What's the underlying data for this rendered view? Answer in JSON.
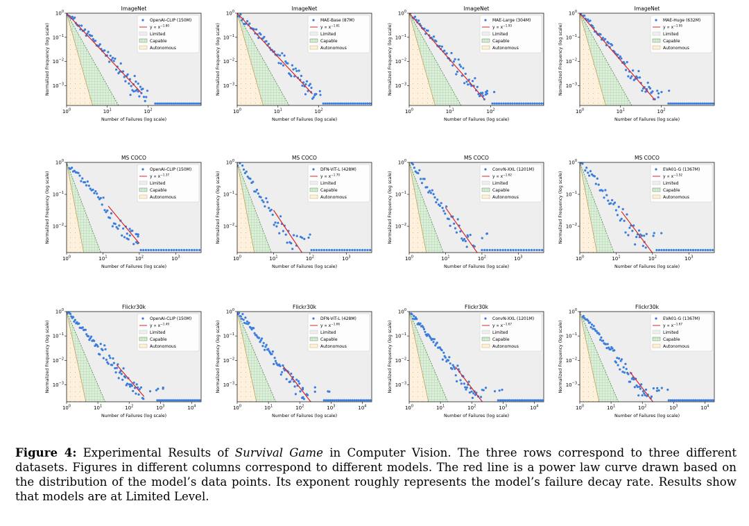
{
  "figure": {
    "caption": {
      "label": "Figure 4:",
      "pre": " Experimental Results of ",
      "em": "Survival Game",
      "post": " in Computer Vision. The three rows correspond to three different datasets. Figures in different columns correspond to different models. The red line is a power law curve drawn based on the distribution of the model’s data points. Its exponent roughly represents the model’s failure decay rate. Results show that models are at Limited Level."
    }
  },
  "legend_labels": {
    "fit": "y ∝ x",
    "limited": "Limited",
    "capable": "Capable",
    "autonomous": "Autonomous"
  },
  "colors": {
    "points": "#3b7ddd",
    "fit": "#d62728",
    "limited": "#eeeeee",
    "capable": "#dcefd9",
    "capable_edge": "#3a7a3a",
    "autonomous": "#fdf0dc",
    "autonomous_edge": "#b89a4a",
    "axes": "#000000"
  },
  "chart_data": [
    {
      "type": "scatter",
      "title": "ImageNet",
      "xlabel": "Number of Failures (log scale)",
      "ylabel": "Normalized Frequency (log scale)",
      "xscale": "log",
      "yscale": "log",
      "xlim": [
        1,
        2000
      ],
      "ylim": [
        0.00015,
        1
      ],
      "xticks": [
        1,
        10,
        100
      ],
      "yticks": [
        0.001,
        0.01,
        0.1,
        1
      ],
      "legend": "top-right",
      "series": [
        {
          "name": "OpenAI-CLIP (150M)"
        }
      ],
      "fit": {
        "exponent": "-1.80",
        "x_range": [
          1,
          70
        ]
      }
    },
    {
      "type": "scatter",
      "title": "ImageNet",
      "xlabel": "Number of Failures (log scale)",
      "ylabel": "Normalized Frequency (log scale)",
      "xscale": "log",
      "yscale": "log",
      "xlim": [
        1,
        2000
      ],
      "ylim": [
        0.00015,
        1
      ],
      "xticks": [
        1,
        10,
        100
      ],
      "yticks": [
        0.001,
        0.01,
        0.1,
        1
      ],
      "legend": "top-right",
      "series": [
        {
          "name": "MAE-Base (87M)"
        }
      ],
      "fit": {
        "exponent": "-1.81",
        "x_range": [
          1,
          70
        ]
      }
    },
    {
      "type": "scatter",
      "title": "ImageNet",
      "xlabel": "Number of Failures (log scale)",
      "ylabel": "Normalized Frequency (log scale)",
      "xscale": "log",
      "yscale": "log",
      "xlim": [
        1,
        2000
      ],
      "ylim": [
        0.00015,
        1
      ],
      "xticks": [
        1,
        10,
        100
      ],
      "yticks": [
        0.001,
        0.01,
        0.1,
        1
      ],
      "legend": "top-right",
      "series": [
        {
          "name": "MAE-Large (304M)"
        }
      ],
      "fit": {
        "exponent": "-1.93",
        "x_range": [
          1,
          70
        ]
      }
    },
    {
      "type": "scatter",
      "title": "ImageNet",
      "xlabel": "Number of Failures (log scale)",
      "ylabel": "Normalized Frequency (log scale)",
      "xscale": "log",
      "yscale": "log",
      "xlim": [
        1,
        2000
      ],
      "ylim": [
        0.00015,
        1
      ],
      "xticks": [
        1,
        10,
        100
      ],
      "yticks": [
        0.001,
        0.01,
        0.1,
        1
      ],
      "legend": "top-right",
      "series": [
        {
          "name": "MAE-Huge (632M)"
        }
      ],
      "fit": {
        "exponent": "-1.95",
        "x_range": [
          1,
          70
        ]
      }
    },
    {
      "type": "scatter",
      "title": "MS COCO",
      "xlabel": "Number of Failures (log scale)",
      "ylabel": "Normalized Frequency (log scale)",
      "xscale": "log",
      "yscale": "log",
      "xlim": [
        1,
        5000
      ],
      "ylim": [
        0.0015,
        1
      ],
      "xticks": [
        1,
        10,
        100,
        1000
      ],
      "yticks": [
        0.01,
        0.1,
        1
      ],
      "legend": "top-right",
      "series": [
        {
          "name": "OpenAI-CLIP (150M)"
        }
      ],
      "fit": {
        "exponent": "-1.37",
        "x_range": [
          14,
          100
        ]
      }
    },
    {
      "type": "scatter",
      "title": "MS COCO",
      "xlabel": "Number of Failures (log scale)",
      "ylabel": "Normalized Frequency (log scale)",
      "xscale": "log",
      "yscale": "log",
      "xlim": [
        1,
        5000
      ],
      "ylim": [
        0.0015,
        1
      ],
      "xticks": [
        1,
        10,
        100,
        1000
      ],
      "yticks": [
        0.01,
        0.1,
        1
      ],
      "legend": "top-right",
      "series": [
        {
          "name": "DFN-ViT-L (428M)"
        }
      ],
      "fit": {
        "exponent": "-1.70",
        "x_range": [
          10,
          100
        ]
      }
    },
    {
      "type": "scatter",
      "title": "MS COCO",
      "xlabel": "Number of Failures (log scale)",
      "ylabel": "Normalized Frequency (log scale)",
      "xscale": "log",
      "yscale": "log",
      "xlim": [
        1,
        5000
      ],
      "ylim": [
        0.0015,
        1
      ],
      "xticks": [
        1,
        10,
        100,
        1000
      ],
      "yticks": [
        0.01,
        0.1,
        1
      ],
      "legend": "top-right",
      "series": [
        {
          "name": "ConvN-XXL (1201M)"
        }
      ],
      "fit": {
        "exponent": "-1.62",
        "x_range": [
          10,
          100
        ]
      }
    },
    {
      "type": "scatter",
      "title": "MS COCO",
      "xlabel": "Number of Failures (log scale)",
      "ylabel": "Normalized Frequency (log scale)",
      "xscale": "log",
      "yscale": "log",
      "xlim": [
        1,
        5000
      ],
      "ylim": [
        0.0015,
        1
      ],
      "xticks": [
        1,
        10,
        100,
        1000
      ],
      "yticks": [
        0.01,
        0.1,
        1
      ],
      "legend": "top-right",
      "series": [
        {
          "name": "EVA01-G (1367M)"
        }
      ],
      "fit": {
        "exponent": "-1.52",
        "x_range": [
          14,
          100
        ]
      }
    },
    {
      "type": "scatter",
      "title": "Flickr30k",
      "xlabel": "Number of Failures (log scale)",
      "ylabel": "Normalized Frequency (log scale)",
      "xscale": "log",
      "yscale": "log",
      "xlim": [
        1,
        20000
      ],
      "ylim": [
        0.0002,
        1
      ],
      "xticks": [
        1,
        10,
        100,
        1000,
        10000
      ],
      "yticks": [
        0.001,
        0.01,
        0.1,
        1
      ],
      "legend": "top-right",
      "series": [
        {
          "name": "OpenAI-CLIP (150M)"
        }
      ],
      "fit": {
        "exponent": "-1.49",
        "x_range": [
          40,
          300
        ]
      }
    },
    {
      "type": "scatter",
      "title": "Flickr30k",
      "xlabel": "Number of Failures (log scale)",
      "ylabel": "Normalized Frequency (log scale)",
      "xscale": "log",
      "yscale": "log",
      "xlim": [
        1,
        20000
      ],
      "ylim": [
        0.0002,
        1
      ],
      "xticks": [
        1,
        10,
        100,
        1000,
        10000
      ],
      "yticks": [
        0.001,
        0.01,
        0.1,
        1
      ],
      "legend": "top-right",
      "series": [
        {
          "name": "DFN-ViT-L (428M)"
        }
      ],
      "fit": {
        "exponent": "-1.66",
        "x_range": [
          30,
          250
        ]
      }
    },
    {
      "type": "scatter",
      "title": "Flickr30k",
      "xlabel": "Number of Failures (log scale)",
      "ylabel": "Normalized Frequency (log scale)",
      "xscale": "log",
      "yscale": "log",
      "xlim": [
        1,
        20000
      ],
      "ylim": [
        0.0002,
        1
      ],
      "xticks": [
        1,
        10,
        100,
        1000,
        10000
      ],
      "yticks": [
        0.001,
        0.01,
        0.1,
        1
      ],
      "legend": "top-right",
      "series": [
        {
          "name": "ConvN-XXL (1201M)"
        }
      ],
      "fit": {
        "exponent": "-1.67",
        "x_range": [
          30,
          250
        ]
      }
    },
    {
      "type": "scatter",
      "title": "Flickr30k",
      "xlabel": "Number of Failures (log scale)",
      "ylabel": "Normalized Frequency (log scale)",
      "xscale": "log",
      "yscale": "log",
      "xlim": [
        1,
        20000
      ],
      "ylim": [
        0.0002,
        1
      ],
      "xticks": [
        1,
        10,
        100,
        1000,
        10000
      ],
      "yticks": [
        0.001,
        0.01,
        0.1,
        1
      ],
      "legend": "top-right",
      "series": [
        {
          "name": "EVA01-G (1367M)"
        }
      ],
      "fit": {
        "exponent": "-1.67",
        "x_range": [
          40,
          250
        ]
      }
    }
  ]
}
